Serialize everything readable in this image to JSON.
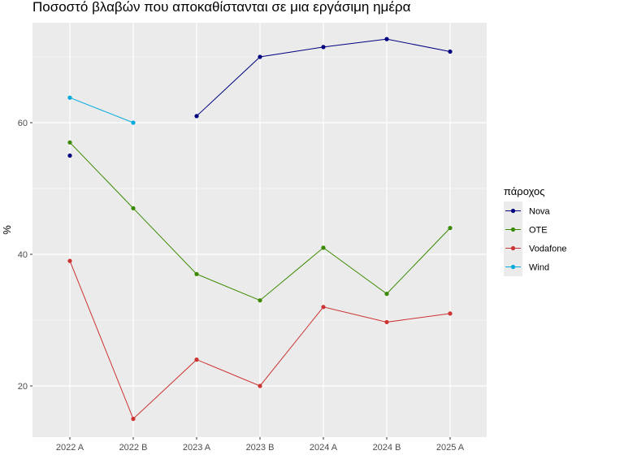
{
  "chart_data": {
    "type": "line",
    "title": "Ποσοστό βλαβών που αποκαθίστανται σε μια εργάσιμη ημέρα",
    "xlabel": "",
    "ylabel": "%",
    "categories": [
      "2022 A",
      "2022 B",
      "2023 A",
      "2023 B",
      "2024 A",
      "2024 B",
      "2025 A"
    ],
    "ylim": [
      12.5,
      75
    ],
    "yticks": [
      20,
      40,
      60
    ],
    "grid": true,
    "legend_title": "πάροχος",
    "legend_position": "right",
    "series": [
      {
        "name": "Nova",
        "color": "#000080",
        "values": [
          55,
          null,
          61,
          70,
          71.5,
          72.7,
          70.8
        ]
      },
      {
        "name": "OTE",
        "color": "#3a8a00",
        "values": [
          57,
          47,
          37,
          33,
          41,
          34,
          44
        ]
      },
      {
        "name": "Vodafone",
        "color": "#cc3333",
        "values": [
          39,
          15,
          24,
          20,
          32,
          29.7,
          31
        ]
      },
      {
        "name": "Wind",
        "color": "#00aadd",
        "values": [
          63.8,
          60,
          null,
          null,
          null,
          null,
          null
        ]
      }
    ]
  }
}
